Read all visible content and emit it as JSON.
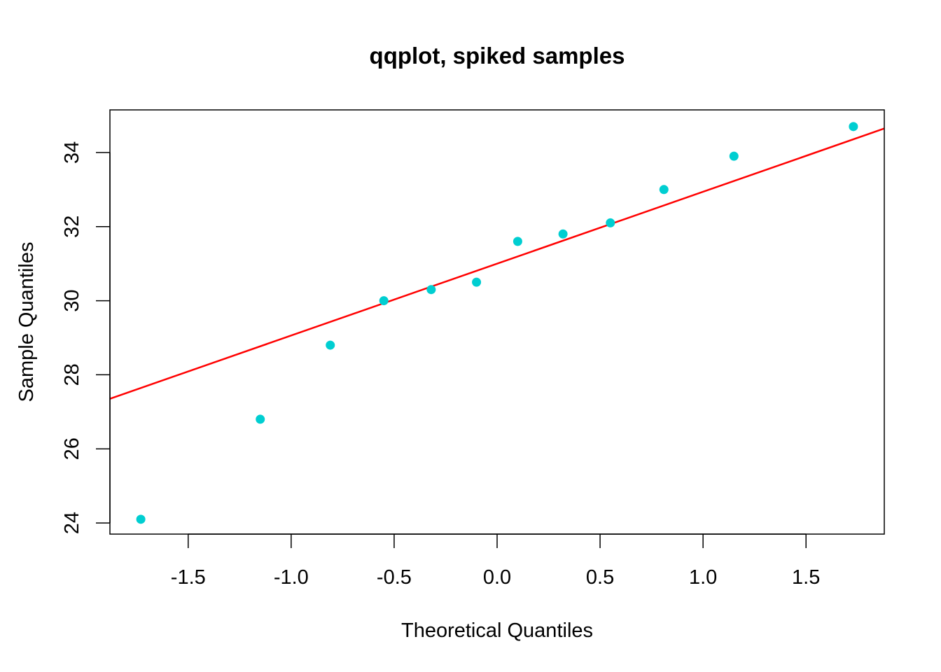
{
  "chart_data": {
    "type": "scatter",
    "title": "qqplot, spiked samples",
    "xlabel": "Theoretical Quantiles",
    "ylabel": "Sample Quantiles",
    "xlim": [
      -1.88,
      1.88
    ],
    "ylim": [
      23.7,
      35.15
    ],
    "x_ticks": [
      -1.5,
      -1.0,
      -0.5,
      0.0,
      0.5,
      1.0,
      1.5
    ],
    "x_tick_labels": [
      "-1.5",
      "-1.0",
      "-0.5",
      "0.0",
      "0.5",
      "1.0",
      "1.5"
    ],
    "y_ticks": [
      24,
      26,
      28,
      30,
      32,
      34
    ],
    "y_tick_labels": [
      "24",
      "26",
      "28",
      "30",
      "32",
      "34"
    ],
    "grid": false,
    "points": {
      "color": "#00CED1",
      "x": [
        -1.73,
        -1.15,
        -0.81,
        -0.55,
        -0.32,
        -0.1,
        0.1,
        0.32,
        0.55,
        0.81,
        1.15,
        1.73
      ],
      "y": [
        24.1,
        26.8,
        28.8,
        30.0,
        30.3,
        30.5,
        31.6,
        31.8,
        32.1,
        33.0,
        33.9,
        34.7
      ]
    },
    "reference_line": {
      "color": "#FF0000",
      "intercept": 31.0,
      "slope": 1.94
    }
  }
}
